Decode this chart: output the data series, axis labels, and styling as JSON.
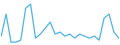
{
  "y_values": [
    20,
    75,
    5,
    5,
    10,
    90,
    100,
    15,
    25,
    40,
    55,
    25,
    30,
    20,
    25,
    15,
    25,
    20,
    15,
    20,
    10,
    65,
    75,
    30,
    15
  ],
  "line_color": "#4db3e6",
  "background_color": "#ffffff",
  "linewidth": 0.9
}
